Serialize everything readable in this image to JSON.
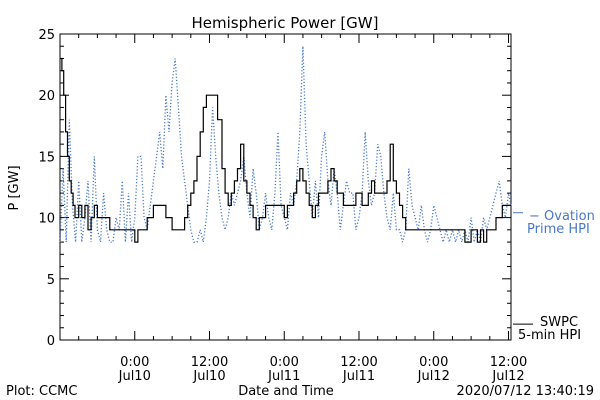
{
  "chart_data": {
    "type": "line",
    "title": "Hemispheric Power [GW]",
    "xlabel": "Date and Time",
    "ylabel": "P [GW]",
    "ylim": [
      0,
      25
    ],
    "y_ticks": [
      0,
      5,
      10,
      15,
      20,
      25
    ],
    "x_unit": "hours since 2020-07-09 12:00",
    "xlim": [
      0,
      72.4
    ],
    "x_ticks": [
      {
        "x": 12,
        "line1": "0:00",
        "line2": "Jul10"
      },
      {
        "x": 24,
        "line1": "12:00",
        "line2": "Jul10"
      },
      {
        "x": 36,
        "line1": "0:00",
        "line2": "Jul11"
      },
      {
        "x": 48,
        "line1": "12:00",
        "line2": "Jul11"
      },
      {
        "x": 60,
        "line1": "0:00",
        "line2": "Jul12"
      },
      {
        "x": 72,
        "line1": "12:00",
        "line2": "Jul12"
      }
    ],
    "series": [
      {
        "name": "SWPC 5-min HPI",
        "legend_line1": "SWPC",
        "legend_line2": "5-min HPI",
        "color": "#000000",
        "style": "step",
        "points": [
          [
            0,
            23
          ],
          [
            0.3,
            22
          ],
          [
            0.6,
            20
          ],
          [
            0.9,
            17
          ],
          [
            1.2,
            15
          ],
          [
            1.5,
            13
          ],
          [
            1.8,
            12
          ],
          [
            2.1,
            11
          ],
          [
            2.4,
            10
          ],
          [
            3,
            11
          ],
          [
            3.5,
            10
          ],
          [
            4,
            11
          ],
          [
            4.5,
            9
          ],
          [
            5,
            10
          ],
          [
            5.5,
            11
          ],
          [
            6,
            10
          ],
          [
            7,
            10
          ],
          [
            8,
            9
          ],
          [
            9,
            9
          ],
          [
            10,
            9
          ],
          [
            11,
            9
          ],
          [
            12,
            8
          ],
          [
            12.5,
            9
          ],
          [
            14,
            10
          ],
          [
            15,
            11
          ],
          [
            16,
            11
          ],
          [
            17,
            10
          ],
          [
            18,
            9
          ],
          [
            19,
            9
          ],
          [
            20,
            10
          ],
          [
            20.5,
            11
          ],
          [
            21,
            12
          ],
          [
            21.5,
            13
          ],
          [
            22,
            15
          ],
          [
            22.5,
            17
          ],
          [
            23,
            19
          ],
          [
            23.5,
            20
          ],
          [
            24.5,
            20
          ],
          [
            25.3,
            18
          ],
          [
            26,
            14
          ],
          [
            26.5,
            12
          ],
          [
            27,
            11
          ],
          [
            27.5,
            12
          ],
          [
            28,
            13
          ],
          [
            28.5,
            14
          ],
          [
            29,
            16
          ],
          [
            29.5,
            13
          ],
          [
            30,
            12
          ],
          [
            30.5,
            11
          ],
          [
            31,
            10
          ],
          [
            31.5,
            9
          ],
          [
            32,
            10
          ],
          [
            32.5,
            10
          ],
          [
            33,
            11
          ],
          [
            34,
            11
          ],
          [
            35,
            11
          ],
          [
            36,
            10
          ],
          [
            36.5,
            11
          ],
          [
            37,
            11
          ],
          [
            37.5,
            12
          ],
          [
            38,
            13
          ],
          [
            38.5,
            14
          ],
          [
            39,
            13
          ],
          [
            39.5,
            12
          ],
          [
            40,
            11
          ],
          [
            40.5,
            10
          ],
          [
            41,
            11
          ],
          [
            41.5,
            12
          ],
          [
            42,
            12
          ],
          [
            42.5,
            12
          ],
          [
            43,
            13
          ],
          [
            43.5,
            14
          ],
          [
            44,
            13
          ],
          [
            44.5,
            12
          ],
          [
            45,
            12
          ],
          [
            45.5,
            11
          ],
          [
            46,
            11
          ],
          [
            47,
            11
          ],
          [
            47.5,
            12
          ],
          [
            48,
            12
          ],
          [
            48.5,
            11
          ],
          [
            49,
            11
          ],
          [
            49.5,
            12
          ],
          [
            50,
            13
          ],
          [
            50.5,
            12
          ],
          [
            51,
            12
          ],
          [
            52,
            12
          ],
          [
            52.5,
            13
          ],
          [
            53,
            16
          ],
          [
            53.5,
            13
          ],
          [
            54,
            12
          ],
          [
            54.5,
            11
          ],
          [
            55,
            10
          ],
          [
            55.5,
            9
          ],
          [
            56,
            9
          ],
          [
            57,
            9
          ],
          [
            58,
            9
          ],
          [
            59,
            9
          ],
          [
            60,
            9
          ],
          [
            61,
            9
          ],
          [
            62,
            9
          ],
          [
            63,
            9
          ],
          [
            64,
            9
          ],
          [
            65,
            8
          ],
          [
            66,
            9
          ],
          [
            67,
            8
          ],
          [
            67.5,
            9
          ],
          [
            68,
            8
          ],
          [
            68.5,
            9
          ],
          [
            69,
            9
          ],
          [
            69.5,
            9
          ],
          [
            70,
            10
          ],
          [
            70.5,
            10
          ],
          [
            71,
            11
          ],
          [
            72,
            11
          ],
          [
            72.4,
            11
          ]
        ]
      },
      {
        "name": "Ovation Prime HPI",
        "legend_line1": "− Ovation",
        "legend_line2": "Prime HPI",
        "color": "#4a78c8",
        "style": "dotted",
        "points": [
          [
            0,
            8
          ],
          [
            0.5,
            14
          ],
          [
            1,
            8
          ],
          [
            1.5,
            18
          ],
          [
            2,
            11
          ],
          [
            2.5,
            8
          ],
          [
            3,
            13
          ],
          [
            3.5,
            8
          ],
          [
            4,
            10
          ],
          [
            4.5,
            13
          ],
          [
            5,
            8
          ],
          [
            5.5,
            15
          ],
          [
            6,
            9
          ],
          [
            6.5,
            8
          ],
          [
            7,
            12
          ],
          [
            7.5,
            9
          ],
          [
            8,
            8
          ],
          [
            8.5,
            8
          ],
          [
            9,
            10
          ],
          [
            9.5,
            9
          ],
          [
            10,
            13
          ],
          [
            10.5,
            8
          ],
          [
            11,
            12
          ],
          [
            11.5,
            8
          ],
          [
            12,
            10
          ],
          [
            12.5,
            15
          ],
          [
            13,
            15
          ],
          [
            13.5,
            10
          ],
          [
            14,
            9
          ],
          [
            14.5,
            11
          ],
          [
            15,
            13
          ],
          [
            15.5,
            15
          ],
          [
            16,
            17
          ],
          [
            16.5,
            14
          ],
          [
            17,
            20
          ],
          [
            17.5,
            17
          ],
          [
            18,
            21
          ],
          [
            18.5,
            23
          ],
          [
            19,
            19
          ],
          [
            19.5,
            15
          ],
          [
            20,
            13
          ],
          [
            20.5,
            11
          ],
          [
            21,
            9
          ],
          [
            21.5,
            8
          ],
          [
            22,
            8
          ],
          [
            22.5,
            9
          ],
          [
            23,
            8
          ],
          [
            23.5,
            10
          ],
          [
            24,
            13
          ],
          [
            24.5,
            19
          ],
          [
            25,
            15
          ],
          [
            25.5,
            12
          ],
          [
            26,
            10
          ],
          [
            26.5,
            9
          ],
          [
            27,
            10
          ],
          [
            27.5,
            12
          ],
          [
            28,
            11
          ],
          [
            28.5,
            12
          ],
          [
            29,
            13
          ],
          [
            29.5,
            15
          ],
          [
            30,
            12
          ],
          [
            30.5,
            10
          ],
          [
            31,
            14
          ],
          [
            31.5,
            12
          ],
          [
            32,
            9
          ],
          [
            32.5,
            10
          ],
          [
            33,
            12
          ],
          [
            33.5,
            10
          ],
          [
            34,
            9
          ],
          [
            34.5,
            12
          ],
          [
            35,
            17
          ],
          [
            35.5,
            11
          ],
          [
            36,
            10
          ],
          [
            36.5,
            9
          ],
          [
            37,
            12
          ],
          [
            37.5,
            11
          ],
          [
            38,
            13
          ],
          [
            38.5,
            17
          ],
          [
            39,
            24
          ],
          [
            39.5,
            16
          ],
          [
            40,
            13
          ],
          [
            40.5,
            10
          ],
          [
            41,
            13
          ],
          [
            41.5,
            10
          ],
          [
            42,
            15
          ],
          [
            42.5,
            17
          ],
          [
            43,
            13
          ],
          [
            43.5,
            11
          ],
          [
            44,
            14
          ],
          [
            44.5,
            12
          ],
          [
            45,
            9
          ],
          [
            45.5,
            11
          ],
          [
            46,
            13
          ],
          [
            46.5,
            12
          ],
          [
            47,
            12
          ],
          [
            47.5,
            9
          ],
          [
            48,
            10
          ],
          [
            48.5,
            12
          ],
          [
            49,
            17
          ],
          [
            49.5,
            13
          ],
          [
            50,
            11
          ],
          [
            50.5,
            12
          ],
          [
            51,
            16
          ],
          [
            51.5,
            15
          ],
          [
            52,
            12
          ],
          [
            52.5,
            10
          ],
          [
            53,
            9
          ],
          [
            53.5,
            12
          ],
          [
            54,
            9
          ],
          [
            54.5,
            9
          ],
          [
            55,
            8
          ],
          [
            55.5,
            9
          ],
          [
            56,
            14
          ],
          [
            56.5,
            11
          ],
          [
            57,
            10
          ],
          [
            57.5,
            9
          ],
          [
            58,
            11
          ],
          [
            58.5,
            9
          ],
          [
            59,
            8
          ],
          [
            59.5,
            9
          ],
          [
            60,
            11
          ],
          [
            60.5,
            10
          ],
          [
            61,
            9
          ],
          [
            61.5,
            8
          ],
          [
            62,
            9
          ],
          [
            62.5,
            8
          ],
          [
            63,
            9
          ],
          [
            63.5,
            8
          ],
          [
            64,
            9
          ],
          [
            64.5,
            8
          ],
          [
            65,
            9
          ],
          [
            65.5,
            8
          ],
          [
            66,
            10
          ],
          [
            66.5,
            8
          ],
          [
            67,
            9
          ],
          [
            67.5,
            8
          ],
          [
            68,
            10
          ],
          [
            68.5,
            9
          ],
          [
            69,
            10
          ],
          [
            69.5,
            11
          ],
          [
            70,
            12
          ],
          [
            70.5,
            13
          ],
          [
            71,
            11
          ],
          [
            71.5,
            10
          ],
          [
            72,
            12
          ],
          [
            72.4,
            11
          ]
        ]
      }
    ],
    "grid": false,
    "legend_placement": "right"
  },
  "footer": {
    "plot_label": "Plot: CCMC",
    "timestamp": "2020/07/12 13:40:19"
  }
}
